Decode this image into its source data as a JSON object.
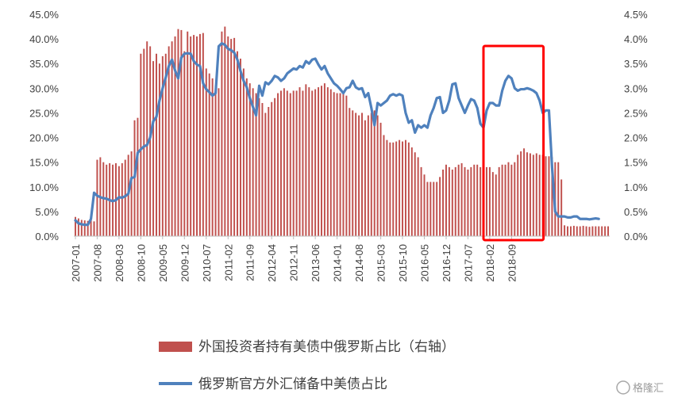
{
  "chart_data": {
    "type": "bar+line",
    "left_axis": {
      "min": 0,
      "max": 45,
      "step": 5,
      "tick_labels": [
        "0.0%",
        "5.0%",
        "10.0%",
        "15.0%",
        "20.0%",
        "25.0%",
        "30.0%",
        "35.0%",
        "40.0%",
        "45.0%"
      ]
    },
    "right_axis": {
      "min": 0,
      "max": 4.5,
      "step": 0.5,
      "tick_labels": [
        "0.0%",
        "0.5%",
        "1.0%",
        "1.5%",
        "2.0%",
        "2.5%",
        "3.0%",
        "3.5%",
        "4.0%",
        "4.5%"
      ]
    },
    "x_tick_labels": [
      "2007-01",
      "2007-08",
      "2008-03",
      "2008-10",
      "2009-05",
      "2009-12",
      "2010-07",
      "2011-02",
      "2011-09",
      "2012-04",
      "2012-11",
      "2013-06",
      "2014-01",
      "2014-08",
      "2015-03",
      "2015-10",
      "2016-05",
      "2016-12",
      "2017-07",
      "2018-02",
      "2018-09"
    ],
    "start_month": "2007-01",
    "series": [
      {
        "name": "外国投资者持有美债中俄罗斯占比（右轴）",
        "kind": "bar",
        "axis": "right",
        "color": "#c0504d",
        "values": [
          0.39,
          0.36,
          0.33,
          0.32,
          0.31,
          0.34,
          0.3,
          1.55,
          1.6,
          1.5,
          1.45,
          1.48,
          1.45,
          1.48,
          1.42,
          1.48,
          1.55,
          1.65,
          1.72,
          2.35,
          2.4,
          3.7,
          3.8,
          3.95,
          3.85,
          3.55,
          3.7,
          3.5,
          3.65,
          3.7,
          3.85,
          3.95,
          4.05,
          4.2,
          4.18,
          3.75,
          4.15,
          4.05,
          4.08,
          4.05,
          4.1,
          4.12,
          3.4,
          3.3,
          3.2,
          3.05,
          3.0,
          4.15,
          4.25,
          4.05,
          4.0,
          4.02,
          3.75,
          3.6,
          3.4,
          3.2,
          3.1,
          3.0,
          2.9,
          2.8,
          2.7,
          2.5,
          2.62,
          2.72,
          2.8,
          2.9,
          2.95,
          3.0,
          2.95,
          2.9,
          2.95,
          2.95,
          3.02,
          2.95,
          3.08,
          3.02,
          2.95,
          2.98,
          3.02,
          3.05,
          3.1,
          3.02,
          2.98,
          2.92,
          2.9,
          2.9,
          2.9,
          2.85,
          2.6,
          2.55,
          2.5,
          2.45,
          2.5,
          2.35,
          2.45,
          2.5,
          2.55,
          2.45,
          2.3,
          2.05,
          1.95,
          1.9,
          1.9,
          1.92,
          1.95,
          1.92,
          1.95,
          1.9,
          1.8,
          1.7,
          1.6,
          1.4,
          1.25,
          1.1,
          1.1,
          1.1,
          1.1,
          1.2,
          1.35,
          1.45,
          1.4,
          1.35,
          1.4,
          1.45,
          1.48,
          1.4,
          1.35,
          1.4,
          1.45,
          1.45,
          1.4,
          1.42,
          1.4,
          1.4,
          1.3,
          1.25,
          1.4,
          1.45,
          1.45,
          1.5,
          1.45,
          1.5,
          1.65,
          1.72,
          1.78,
          1.7,
          1.68,
          1.65,
          1.68,
          1.65,
          1.65,
          1.62,
          1.62,
          1.6,
          1.5,
          1.5,
          1.15,
          0.22,
          0.2,
          0.2,
          0.21,
          0.2,
          0.2,
          0.21,
          0.2,
          0.19,
          0.2,
          0.2,
          0.2,
          0.2,
          0.2,
          0.2
        ]
      },
      {
        "name": "俄罗斯官方外汇储备中美债占比",
        "kind": "line",
        "axis": "left",
        "color": "#4f81bd",
        "values": [
          3.2,
          2.6,
          2.4,
          2.3,
          2.3,
          3.5,
          8.8,
          8.2,
          7.9,
          7.7,
          7.6,
          7.3,
          7.1,
          7.3,
          7.9,
          7.8,
          8.1,
          8.6,
          11.8,
          12.0,
          16.9,
          17.6,
          18.2,
          18.5,
          20.0,
          23.3,
          24.2,
          27.5,
          30.0,
          32.2,
          34.5,
          35.8,
          33.6,
          32.0,
          36.2,
          37.0,
          37.1,
          37.0,
          35.5,
          34.8,
          34.5,
          31.0,
          29.8,
          29.2,
          28.5,
          29.0,
          38.5,
          39.1,
          38.8,
          38.0,
          37.7,
          37.2,
          35.8,
          33.5,
          31.5,
          30.2,
          28.0,
          26.2,
          24.5,
          30.5,
          28.5,
          31.2,
          30.8,
          31.5,
          32.5,
          32.2,
          31.5,
          32.0,
          33.0,
          33.5,
          34.0,
          33.8,
          34.5,
          34.2,
          35.5,
          35.0,
          35.8,
          36.0,
          34.8,
          33.8,
          34.5,
          33.0,
          32.0,
          31.0,
          30.5,
          29.8,
          29.0,
          30.0,
          30.2,
          31.5,
          30.2,
          29.8,
          30.0,
          28.2,
          29.0,
          26.0,
          22.5,
          27.0,
          26.5,
          27.0,
          27.5,
          28.5,
          28.8,
          28.5,
          28.8,
          28.5,
          25.0,
          23.0,
          23.5,
          21.0,
          22.5,
          22.0,
          22.5,
          22.0,
          24.5,
          26.0,
          28.0,
          28.2,
          25.0,
          25.5,
          27.5,
          30.8,
          31.0,
          28.0,
          26.5,
          25.0,
          26.5,
          27.8,
          27.5,
          26.0,
          22.8,
          22.0,
          25.5,
          27.0,
          27.0,
          26.5,
          26.5,
          29.5,
          31.5,
          32.5,
          32.0,
          30.0,
          29.5,
          29.8,
          29.8,
          30.0,
          29.8,
          29.5,
          29.0,
          27.5,
          25.0,
          25.5,
          25.5,
          14.0,
          5.0,
          4.0,
          4.0,
          4.0,
          3.8,
          3.8,
          4.0,
          4.0,
          3.5,
          3.5,
          3.5,
          3.4,
          3.5,
          3.6,
          3.5
        ]
      }
    ],
    "legend_placement": "bottom",
    "highlight_box": {
      "from_month": "2018-01",
      "to_month": "2019-06",
      "color": "#ff0000"
    },
    "grid": false
  },
  "watermark": "格隆汇"
}
